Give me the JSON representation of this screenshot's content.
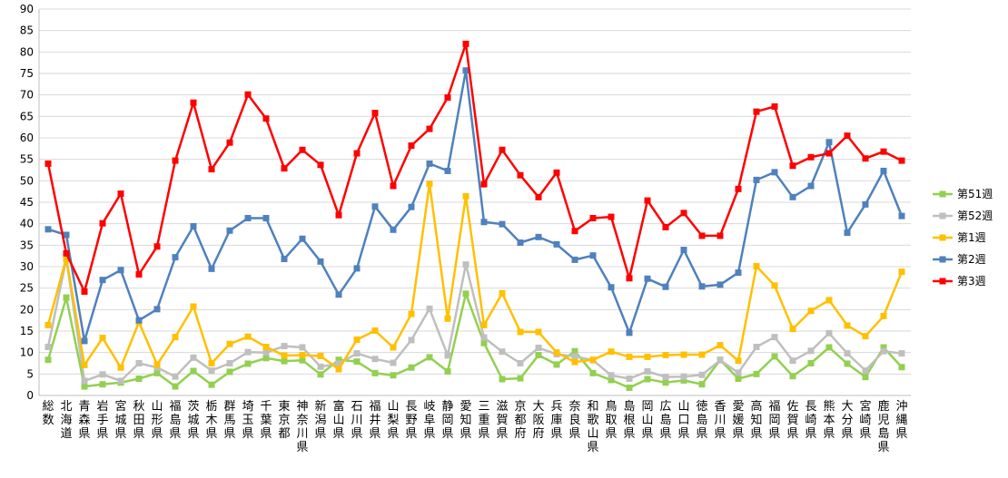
{
  "chart_data": {
    "type": "line",
    "ylim": [
      0,
      90
    ],
    "yticks": [
      0,
      5,
      10,
      15,
      20,
      25,
      30,
      35,
      40,
      45,
      50,
      55,
      60,
      65,
      70,
      75,
      80,
      85,
      90
    ],
    "grid": true,
    "legend_position": "right",
    "categories": [
      "総数",
      "北海道",
      "青森県",
      "岩手県",
      "宮城県",
      "秋田県",
      "山形県",
      "福島県",
      "茨城県",
      "栃木県",
      "群馬県",
      "埼玉県",
      "千葉県",
      "東京都",
      "神奈川県",
      "新潟県",
      "富山県",
      "石川県",
      "福井県",
      "山梨県",
      "長野県",
      "岐阜県",
      "静岡県",
      "愛知県",
      "三重県",
      "滋賀県",
      "京都府",
      "大阪府",
      "兵庫県",
      "奈良県",
      "和歌山県",
      "鳥取県",
      "島根県",
      "岡山県",
      "広島県",
      "山口県",
      "徳島県",
      "香川県",
      "愛媛県",
      "高知県",
      "福岡県",
      "佐賀県",
      "長崎県",
      "熊本県",
      "大分県",
      "宮崎県",
      "鹿児島県",
      "沖縄県"
    ],
    "series": [
      {
        "name": "第51週",
        "color": "#92D050",
        "values": [
          8.3,
          22.8,
          2.1,
          2.6,
          3.0,
          3.9,
          5.2,
          2.1,
          5.7,
          2.5,
          5.5,
          7.4,
          8.7,
          8.0,
          8.2,
          4.9,
          8.3,
          7.9,
          5.2,
          4.7,
          6.5,
          8.9,
          5.6,
          23.7,
          12.2,
          3.8,
          4.0,
          9.4,
          7.2,
          10.3,
          5.2,
          3.6,
          1.8,
          3.8,
          3.0,
          3.5,
          2.6,
          8.3,
          3.9,
          5.0,
          9.1,
          4.5,
          7.5,
          11.2,
          7.4,
          4.3,
          11.2,
          6.6
        ]
      },
      {
        "name": "第52週",
        "color": "#BFBFBF",
        "values": [
          11.3,
          31.8,
          3.4,
          4.9,
          3.4,
          7.5,
          6.5,
          4.4,
          8.8,
          5.8,
          7.5,
          10.1,
          10.0,
          11.5,
          11.2,
          6.7,
          7.4,
          9.8,
          8.5,
          7.6,
          12.9,
          20.2,
          9.3,
          30.5,
          13.5,
          10.2,
          7.5,
          11.1,
          9.6,
          9.1,
          8.2,
          4.7,
          3.9,
          5.6,
          4.3,
          4.4,
          4.8,
          8.2,
          5.3,
          11.3,
          13.6,
          8.1,
          10.4,
          14.5,
          9.8,
          5.8,
          10.3,
          9.8
        ]
      },
      {
        "name": "第1週",
        "color": "#FFC000",
        "values": [
          16.4,
          32.0,
          7.1,
          13.4,
          6.5,
          17.1,
          7.2,
          13.6,
          20.7,
          7.5,
          12.0,
          13.7,
          11.3,
          9.3,
          9.4,
          9.2,
          6.1,
          13.0,
          15.1,
          11.2,
          19.0,
          49.3,
          17.9,
          46.4,
          16.4,
          23.8,
          14.8,
          14.8,
          10.0,
          7.8,
          8.3,
          10.2,
          9.0,
          9.0,
          9.4,
          9.5,
          9.5,
          11.7,
          8.1,
          30.1,
          25.6,
          15.5,
          19.7,
          22.2,
          16.3,
          13.8,
          18.5,
          28.8
        ]
      },
      {
        "name": "第2週",
        "color": "#4F81BD",
        "values": [
          38.7,
          37.4,
          12.7,
          26.9,
          29.2,
          17.5,
          20.1,
          32.2,
          39.4,
          29.5,
          38.4,
          41.3,
          41.3,
          31.8,
          36.5,
          31.2,
          23.5,
          29.6,
          44.0,
          38.6,
          43.9,
          54.0,
          52.3,
          75.7,
          40.4,
          39.9,
          35.6,
          36.9,
          35.2,
          31.6,
          32.6,
          25.2,
          14.6,
          27.2,
          25.3,
          33.9,
          25.4,
          25.8,
          28.6,
          50.2,
          52.0,
          46.2,
          48.8,
          59.0,
          37.9,
          44.5,
          52.3,
          41.8
        ]
      },
      {
        "name": "第3週",
        "color": "#FF0000",
        "values": [
          54.0,
          33.1,
          24.2,
          40.1,
          47.0,
          28.2,
          34.7,
          54.7,
          68.2,
          52.7,
          58.9,
          70.1,
          64.5,
          52.9,
          57.2,
          53.7,
          42.0,
          56.4,
          65.8,
          48.8,
          58.2,
          62.1,
          69.4,
          81.9,
          49.2,
          57.2,
          51.3,
          46.2,
          51.9,
          38.3,
          41.3,
          41.6,
          27.3,
          45.4,
          39.2,
          42.5,
          37.2,
          37.2,
          48.1,
          66.1,
          67.3,
          53.5,
          55.5,
          56.4,
          60.5,
          55.2,
          56.8,
          54.7
        ]
      }
    ]
  }
}
